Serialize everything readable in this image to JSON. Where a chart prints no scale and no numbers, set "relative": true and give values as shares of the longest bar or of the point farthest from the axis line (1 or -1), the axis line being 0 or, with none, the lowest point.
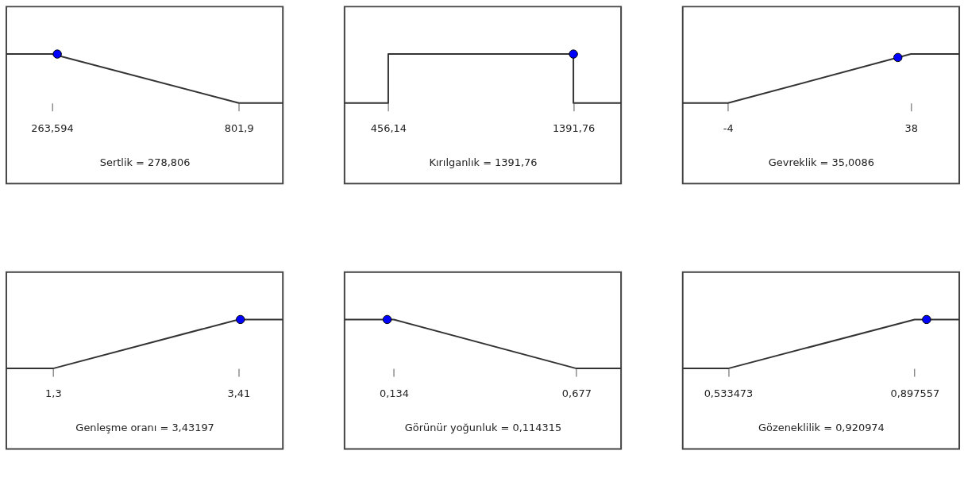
{
  "chart_data": [
    {
      "type": "line",
      "relative": true,
      "xlabel": "Sertlik = 278,806",
      "xlim": [
        131.9,
        929
      ],
      "xticks": [
        {
          "value": 263.594,
          "label": "263,594"
        },
        {
          "value": 801.9,
          "label": "801,9"
        }
      ],
      "grid": false,
      "series": [
        {
          "color": "#333333",
          "x": [
            131.9,
            263.594,
            801.9,
            929
          ],
          "values": [
            1,
            1,
            0,
            0
          ]
        },
        {
          "type": "scatter",
          "marker": "circle",
          "color": "#0000ff",
          "x": [
            278.806
          ],
          "values": [
            1
          ]
        }
      ]
    },
    {
      "type": "line",
      "relative": true,
      "xlabel": "Kırılganlık = 1391,76",
      "xlim": [
        235.1,
        1632.6
      ],
      "xticks": [
        {
          "value": 456.14,
          "label": "456,14"
        },
        {
          "value": 1391.76,
          "label": "1391,76"
        }
      ],
      "grid": false,
      "series": [
        {
          "color": "#333333",
          "x": [
            235.1,
            456.14,
            456.14,
            1391.76,
            1391.76,
            1632.6
          ],
          "values": [
            0,
            0,
            1,
            1,
            0,
            0
          ]
        },
        {
          "type": "scatter",
          "marker": "circle",
          "color": "#0000ff",
          "x": [
            1391.76
          ],
          "values": [
            1
          ]
        }
      ]
    },
    {
      "type": "line",
      "relative": true,
      "xlabel": "Gevreklik = 35,0086",
      "xlim": [
        -14.4,
        49.1
      ],
      "xticks": [
        -4,
        38
      ],
      "grid": false,
      "series": [
        {
          "color": "#333333",
          "x": [
            -14.4,
            -4,
            38,
            49.1
          ],
          "values": [
            0,
            0,
            1,
            1
          ]
        },
        {
          "type": "scatter",
          "marker": "circle",
          "color": "#0000ff",
          "x": [
            35.0086
          ],
          "values": [
            0.93
          ]
        }
      ]
    },
    {
      "type": "line",
      "relative": true,
      "xlabel": "Genleşme oranı = 3,43197",
      "xlim": [
        0.768,
        3.915
      ],
      "xticks": [
        {
          "value": 1.3,
          "label": "1,3"
        },
        {
          "value": 3.41,
          "label": "3,41"
        }
      ],
      "grid": false,
      "series": [
        {
          "color": "#333333",
          "x": [
            0.768,
            1.3,
            3.41,
            3.915
          ],
          "values": [
            0,
            0,
            1,
            1
          ]
        },
        {
          "type": "scatter",
          "marker": "circle",
          "color": "#0000ff",
          "x": [
            3.43197
          ],
          "values": [
            1
          ]
        }
      ]
    },
    {
      "type": "line",
      "relative": true,
      "xlabel": "Görünür yoğunluk = 0,114315",
      "xlim": [
        -0.0126,
        0.8099
      ],
      "xticks": [
        {
          "value": 0.134,
          "label": "0,134"
        },
        {
          "value": 0.677,
          "label": "0,677"
        }
      ],
      "grid": false,
      "series": [
        {
          "color": "#333333",
          "x": [
            -0.0126,
            0.134,
            0.677,
            0.8099
          ],
          "values": [
            1,
            1,
            0,
            0
          ]
        },
        {
          "type": "scatter",
          "marker": "circle",
          "color": "#0000ff",
          "x": [
            0.114315
          ],
          "values": [
            1
          ]
        }
      ]
    },
    {
      "type": "line",
      "relative": true,
      "xlabel": "Gözeneklilik = 0,920974",
      "xlim": [
        0.44474,
        0.98476
      ],
      "xticks": [
        {
          "value": 0.533473,
          "label": "0,533473"
        },
        {
          "value": 0.897557,
          "label": "0,897557"
        }
      ],
      "grid": false,
      "series": [
        {
          "color": "#333333",
          "x": [
            0.44474,
            0.533473,
            0.897557,
            0.98476
          ],
          "values": [
            0,
            0,
            1,
            1
          ]
        },
        {
          "type": "scatter",
          "marker": "circle",
          "color": "#0000ff",
          "x": [
            0.920974
          ],
          "values": [
            1
          ]
        }
      ]
    }
  ]
}
